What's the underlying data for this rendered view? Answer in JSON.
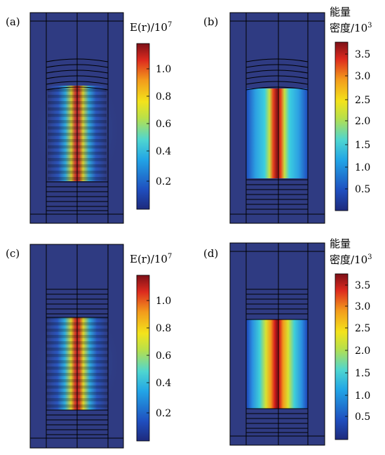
{
  "figure": {
    "panels": [
      {
        "id": "a",
        "label": "(a)",
        "field": "E",
        "cb_title_line1": "",
        "cb_title_math": "E(r)/10",
        "cb_title_exp": "7",
        "ticks": [
          "0.2",
          "0.4",
          "0.6",
          "0.8",
          "1.0"
        ],
        "cavity": "partial"
      },
      {
        "id": "b",
        "label": "(b)",
        "field": "energy",
        "cb_title_line1": "能量",
        "cb_title_line2": "密度/10",
        "cb_title_exp": "3",
        "ticks": [
          "0.5",
          "1.0",
          "1.5",
          "2.0",
          "2.5",
          "3.0",
          "3.5"
        ],
        "cavity": "partial"
      },
      {
        "id": "c",
        "label": "(c)",
        "field": "E",
        "cb_title_line1": "",
        "cb_title_math": "E(r)/10",
        "cb_title_exp": "7",
        "ticks": [
          "0.2",
          "0.4",
          "0.6",
          "0.8",
          "1.0"
        ],
        "cavity": "full"
      },
      {
        "id": "d",
        "label": "(d)",
        "field": "energy",
        "cb_title_line1": "能量",
        "cb_title_line2": "密度/10",
        "cb_title_exp": "3",
        "ticks": [
          "0.5",
          "1.0",
          "1.5",
          "2.0",
          "2.5",
          "3.0",
          "3.5"
        ],
        "cavity": "full"
      }
    ],
    "colors": {
      "background": "#2f3b82",
      "deep": "#1c2a7a",
      "cyan": "#33c8e8",
      "yellow": "#f2e21c",
      "red": "#d81e1e",
      "darkred": "#7a0f1a",
      "line": "#000000"
    }
  }
}
